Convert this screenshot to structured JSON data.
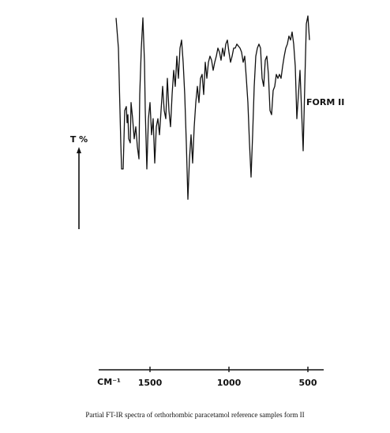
{
  "chart_data": {
    "type": "line",
    "caption": "Partial FT-IR spectra of  orthorhombic paracetamol reference samples form  II",
    "y_label": "T %",
    "x_label": "CM⁻¹",
    "annotation": "FORM II",
    "color": "#111111",
    "xlim": [
      1825,
      400
    ],
    "xticks": [
      1500,
      1000,
      500
    ],
    "ylim": [
      0,
      100
    ],
    "x": [
      1715,
      1700,
      1685,
      1680,
      1670,
      1660,
      1650,
      1645,
      1640,
      1635,
      1625,
      1620,
      1610,
      1600,
      1590,
      1580,
      1570,
      1565,
      1555,
      1545,
      1535,
      1530,
      1520,
      1510,
      1500,
      1490,
      1480,
      1470,
      1460,
      1450,
      1440,
      1430,
      1420,
      1410,
      1400,
      1390,
      1380,
      1370,
      1360,
      1350,
      1340,
      1330,
      1320,
      1310,
      1300,
      1290,
      1280,
      1270,
      1260,
      1250,
      1240,
      1230,
      1220,
      1210,
      1200,
      1190,
      1180,
      1170,
      1160,
      1150,
      1140,
      1130,
      1120,
      1110,
      1100,
      1090,
      1080,
      1070,
      1060,
      1050,
      1040,
      1030,
      1020,
      1010,
      1000,
      990,
      980,
      970,
      960,
      950,
      940,
      930,
      920,
      910,
      900,
      890,
      880,
      870,
      860,
      850,
      840,
      830,
      820,
      810,
      800,
      790,
      780,
      770,
      760,
      750,
      740,
      730,
      720,
      710,
      700,
      690,
      680,
      670,
      660,
      650,
      640,
      630,
      620,
      610,
      600,
      590,
      580,
      570,
      560,
      550,
      540,
      530,
      520,
      510,
      500,
      490
    ],
    "values": [
      97,
      82,
      35,
      22,
      22,
      51,
      53,
      45,
      49,
      37,
      35,
      55,
      47,
      37,
      43,
      33,
      27,
      59,
      82,
      97,
      75,
      51,
      22,
      47,
      55,
      39,
      47,
      25,
      43,
      47,
      39,
      51,
      63,
      51,
      47,
      67,
      51,
      43,
      59,
      71,
      63,
      78,
      67,
      82,
      86,
      75,
      59,
      35,
      7,
      27,
      39,
      25,
      43,
      55,
      63,
      55,
      67,
      69,
      59,
      75,
      67,
      75,
      78,
      76,
      71,
      75,
      78,
      82,
      80,
      76,
      82,
      78,
      84,
      86,
      80,
      75,
      78,
      82,
      82,
      84,
      83,
      82,
      80,
      75,
      78,
      67,
      55,
      35,
      18,
      39,
      63,
      78,
      82,
      84,
      82,
      67,
      63,
      76,
      78,
      69,
      51,
      49,
      61,
      63,
      69,
      67,
      69,
      67,
      73,
      78,
      82,
      84,
      88,
      86,
      90,
      84,
      73,
      47,
      59,
      71,
      51,
      31,
      63,
      94,
      98,
      86
    ]
  }
}
